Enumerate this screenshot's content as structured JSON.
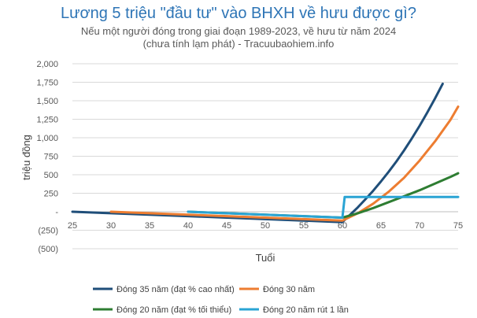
{
  "chart_data": {
    "type": "line",
    "title": "Lương 5 triệu \"đầu tư\" vào BHXH về hưu được gì?",
    "subtitle_line1": "Nếu một người đóng trong giai đoạn 1989-2023, về hưu từ năm 2024",
    "subtitle_line2": "(chưa tính lạm phát) - Tracuubaohiem.info",
    "xlabel": "Tuổi",
    "ylabel": "triệu đồng",
    "xlim": [
      25,
      75
    ],
    "ylim": [
      -500,
      2000
    ],
    "x_ticks": [
      25,
      30,
      35,
      40,
      45,
      50,
      55,
      60,
      65,
      70,
      75
    ],
    "y_ticks": [
      2000,
      1750,
      1500,
      1250,
      1000,
      750,
      500,
      250,
      0,
      -250,
      -500
    ],
    "y_tick_labels": [
      "2,000",
      "1,750",
      "1,500",
      "1,250",
      "1,000",
      "750",
      "500",
      "250",
      "-",
      "(250)",
      "(500)"
    ],
    "grid": "horizontal",
    "legend_position": "bottom",
    "series": [
      {
        "name": "Đóng 35 năm (đạt % cao nhất)",
        "color": "#1f4e79",
        "x": [
          25,
          30,
          35,
          40,
          45,
          50,
          55,
          60,
          61,
          62,
          63,
          64,
          65,
          66,
          67,
          68,
          69,
          70,
          71,
          72,
          73
        ],
        "y": [
          0,
          -20,
          -40,
          -60,
          -80,
          -100,
          -120,
          -140,
          -40,
          60,
          170,
          285,
          410,
          540,
          680,
          830,
          990,
          1160,
          1340,
          1530,
          1730
        ]
      },
      {
        "name": "Đóng 30 năm",
        "color": "#ed7d31",
        "x": [
          30,
          35,
          40,
          45,
          50,
          55,
          60,
          62,
          64,
          66,
          68,
          70,
          72,
          74,
          75
        ],
        "y": [
          0,
          -20,
          -40,
          -60,
          -80,
          -100,
          -120,
          -20,
          110,
          270,
          460,
          690,
          950,
          1240,
          1420
        ]
      },
      {
        "name": "Đóng 20 năm (đạt % tối thiểu)",
        "color": "#2e7d32",
        "x": [
          40,
          45,
          50,
          55,
          60,
          62,
          64,
          66,
          68,
          70,
          72,
          74,
          75
        ],
        "y": [
          0,
          -20,
          -40,
          -60,
          -80,
          -20,
          50,
          130,
          210,
          290,
          380,
          470,
          520
        ]
      },
      {
        "name": "Đóng 20 năm rút 1 lần",
        "color": "#2aa4d4",
        "x": [
          40,
          45,
          50,
          55,
          60,
          60.3,
          75
        ],
        "y": [
          0,
          -20,
          -40,
          -60,
          -80,
          200,
          200
        ]
      }
    ]
  }
}
